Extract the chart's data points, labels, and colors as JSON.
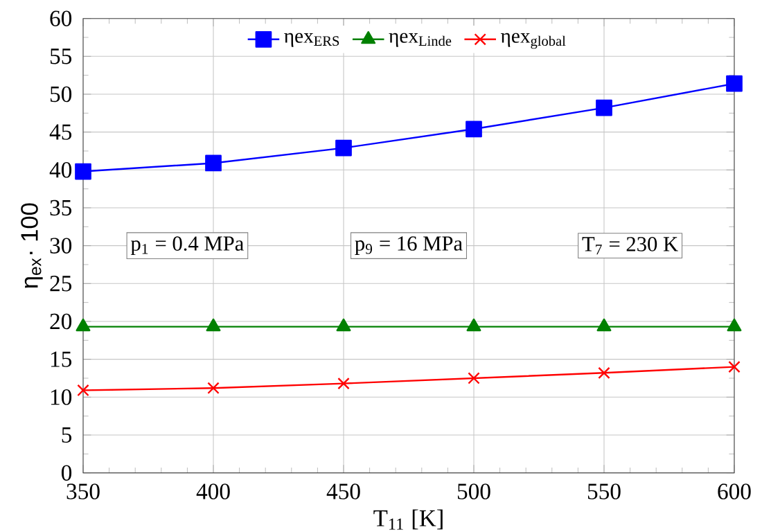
{
  "chart_data": {
    "type": "line",
    "xlabel": "T$_{11}$  [K]",
    "ylabel": "η$_{ex}$· 100",
    "x": [
      350,
      400,
      450,
      500,
      550,
      600
    ],
    "series": [
      {
        "name": "ηex$_{ERS}$",
        "color": "#0000ff",
        "marker": "square",
        "values": [
          39.8,
          40.9,
          42.9,
          45.4,
          48.2,
          51.4
        ]
      },
      {
        "name": "ηex$_{Linde}$",
        "color": "#008000",
        "marker": "triangle",
        "values": [
          19.3,
          19.3,
          19.3,
          19.3,
          19.3,
          19.3
        ]
      },
      {
        "name": "ηex$_{global}$",
        "color": "#ff0000",
        "marker": "cross",
        "values": [
          10.9,
          11.2,
          11.8,
          12.5,
          13.2,
          14.0
        ]
      }
    ],
    "annotations": [
      "p$_{1}$ = 0.4 MPa",
      "p$_{9}$ = 16 MPa",
      "T$_{7}$ = 230 K"
    ],
    "xlim": [
      350,
      600
    ],
    "xticks": [
      350,
      400,
      450,
      500,
      550,
      600
    ],
    "ylim": [
      0,
      60
    ],
    "yticks": [
      0,
      5,
      10,
      15,
      20,
      25,
      30,
      35,
      40,
      45,
      50,
      55,
      60
    ],
    "grid": true,
    "legend": "top",
    "line_style": "solid"
  }
}
